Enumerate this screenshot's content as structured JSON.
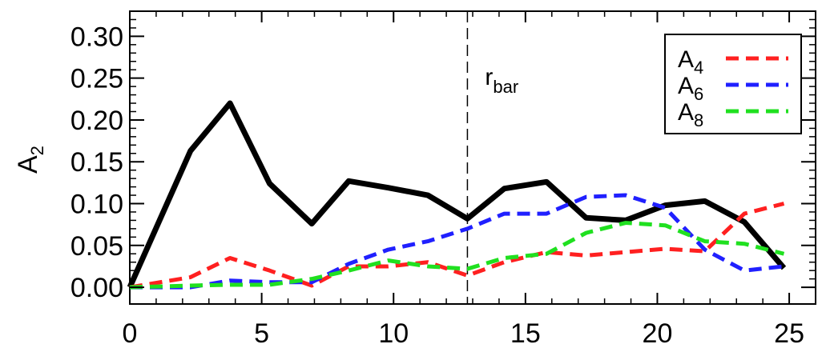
{
  "chart_data": {
    "type": "line",
    "title": "",
    "xlabel": "",
    "ylabel": "A",
    "ylabel_sub": "2",
    "xlim": [
      0,
      26
    ],
    "ylim": [
      -0.02,
      0.33
    ],
    "xticks": [
      0,
      5,
      10,
      15,
      20,
      25
    ],
    "xtick_labels": [
      "0",
      "5",
      "10",
      "15",
      "20",
      "25"
    ],
    "yticks": [
      0,
      0.05,
      0.1,
      0.15,
      0.2,
      0.25,
      0.3
    ],
    "ytick_labels": [
      "0.00",
      "0.05",
      "0.10",
      "0.15",
      "0.20",
      "0.25",
      "0.30"
    ],
    "grid": false,
    "legend_position": "top-right",
    "series": [
      {
        "name": "",
        "color": "#000000",
        "style": "solid",
        "x": [
          0,
          2.3,
          3.8,
          5.3,
          6.9,
          8.3,
          9.8,
          11.3,
          12.8,
          14.2,
          15.8,
          17.3,
          18.8,
          20.3,
          21.8,
          23.3,
          24.8
        ],
        "y": [
          0.0,
          0.163,
          0.22,
          0.124,
          0.076,
          0.127,
          0.119,
          0.11,
          0.082,
          0.118,
          0.126,
          0.083,
          0.08,
          0.098,
          0.103,
          0.078,
          0.023
        ]
      },
      {
        "name": "A",
        "name_sub": "4",
        "color": "#ff2020",
        "style": "dashed",
        "x": [
          0,
          2.3,
          3.8,
          5.3,
          6.9,
          8.3,
          9.8,
          11.3,
          12.8,
          14.2,
          15.8,
          17.3,
          18.8,
          20.3,
          21.8,
          23.3,
          24.8
        ],
        "y": [
          0.0,
          0.012,
          0.035,
          0.02,
          0.002,
          0.025,
          0.025,
          0.03,
          0.014,
          0.03,
          0.042,
          0.038,
          0.042,
          0.046,
          0.043,
          0.088,
          0.1
        ]
      },
      {
        "name": "A",
        "name_sub": "6",
        "color": "#2020ff",
        "style": "dashed",
        "x": [
          0,
          2.3,
          3.8,
          5.3,
          6.9,
          8.3,
          9.8,
          11.3,
          12.8,
          14.2,
          15.8,
          17.3,
          18.8,
          20.3,
          21.8,
          23.3,
          24.8
        ],
        "y": [
          0.0,
          0.0,
          0.008,
          0.006,
          0.006,
          0.028,
          0.045,
          0.055,
          0.07,
          0.088,
          0.088,
          0.108,
          0.11,
          0.095,
          0.045,
          0.02,
          0.025
        ]
      },
      {
        "name": "A",
        "name_sub": "8",
        "color": "#20e020",
        "style": "dashed",
        "x": [
          0,
          2.3,
          3.8,
          5.3,
          6.9,
          8.3,
          9.8,
          11.3,
          12.8,
          14.2,
          15.8,
          17.3,
          18.8,
          20.3,
          21.8,
          23.3,
          24.8
        ],
        "y": [
          0.0,
          0.002,
          0.003,
          0.003,
          0.01,
          0.02,
          0.032,
          0.025,
          0.022,
          0.035,
          0.04,
          0.065,
          0.077,
          0.074,
          0.055,
          0.052,
          0.04
        ]
      }
    ],
    "annotations": [
      {
        "type": "vline",
        "x": 12.8,
        "style": "dashed",
        "color": "#000000",
        "label": "r",
        "label_sub": "bar"
      }
    ]
  }
}
